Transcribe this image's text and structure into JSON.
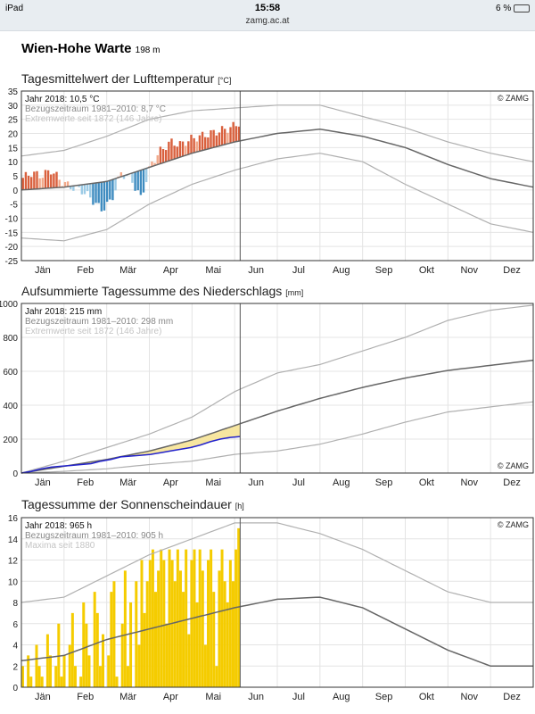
{
  "status_bar": {
    "device": "iPad",
    "time": "15:58",
    "url": "zamg.ac.at",
    "battery": "6 %"
  },
  "station": {
    "name": "Wien-Hohe Warte",
    "elevation": "198 m"
  },
  "colors": {
    "above": "#d9603d",
    "above_light": "#f2a98a",
    "below": "#3f8cc0",
    "below_light": "#9ccbe6",
    "precip_line": "#2222cc",
    "precip_fill": "#f7e6a0",
    "sun_bar": "#f5cc00",
    "normal": "#666666",
    "extreme": "#b0b0b0"
  },
  "chart_data": [
    {
      "type": "line",
      "title": "Tagesmittelwert der Lufttemperatur",
      "unit": "[°C]",
      "ylim": [
        -25,
        35
      ],
      "yticks": [
        35,
        30,
        25,
        20,
        15,
        10,
        5,
        0,
        -5,
        -10,
        -15,
        -20,
        -25
      ],
      "months": [
        "Jän",
        "Feb",
        "Mär",
        "Apr",
        "Mai",
        "Jun",
        "Jul",
        "Aug",
        "Sep",
        "Okt",
        "Nov",
        "Dez"
      ],
      "legend": [
        "Jahr 2018: 10,5 °C",
        "Bezugszeitraum 1981–2010: 8,7 °C",
        "Extremwerte seit 1872 (146 Jahre)"
      ],
      "credit": "© ZAMG",
      "today_day": 156,
      "normal_monthly": [
        0,
        1,
        3,
        8,
        13,
        17,
        20,
        21.5,
        19,
        15,
        9,
        4,
        1
      ],
      "max_monthly": [
        12,
        14,
        19,
        25,
        28,
        29,
        30,
        30,
        26,
        22,
        17,
        13,
        10
      ],
      "min_monthly": [
        -17,
        -18,
        -14,
        -5,
        2,
        7,
        11,
        13,
        10,
        2,
        -5,
        -12,
        -15
      ],
      "year2018_weekly": [
        4,
        6,
        5,
        7,
        3,
        1,
        0,
        -3,
        -7,
        -4,
        6,
        4,
        -3,
        9,
        14,
        17,
        16,
        18,
        19,
        20,
        21,
        22,
        24
      ]
    },
    {
      "type": "line",
      "title": "Aufsummierte Tagessumme des Niederschlags",
      "unit": "[mm]",
      "ylim": [
        0,
        1000
      ],
      "yticks": [
        1000,
        800,
        600,
        400,
        200,
        0
      ],
      "months": [
        "Jän",
        "Feb",
        "Mär",
        "Apr",
        "Mai",
        "Jun",
        "Jul",
        "Aug",
        "Sep",
        "Okt",
        "Nov",
        "Dez"
      ],
      "legend": [
        "Jahr 2018: 215 mm",
        "Bezugszeitraum 1981–2010: 298 mm",
        "Extremwerte seit 1872 (146 Jahre)"
      ],
      "credit": "© ZAMG",
      "today_day": 156,
      "normal_monthly": [
        0,
        40,
        80,
        130,
        195,
        280,
        365,
        440,
        505,
        560,
        605,
        635,
        665
      ],
      "max_monthly": [
        0,
        70,
        150,
        230,
        330,
        480,
        590,
        640,
        720,
        800,
        900,
        960,
        990
      ],
      "min_monthly": [
        0,
        10,
        25,
        50,
        70,
        110,
        130,
        170,
        230,
        300,
        360,
        390,
        420
      ],
      "year2018_weekly": [
        0,
        10,
        25,
        35,
        40,
        45,
        50,
        55,
        70,
        80,
        95,
        100,
        105,
        110,
        120,
        130,
        140,
        150,
        165,
        185,
        200,
        210,
        215
      ]
    },
    {
      "type": "bar",
      "title": "Tagessumme der Sonnenscheindauer",
      "unit": "[h]",
      "ylim": [
        0,
        16
      ],
      "yticks": [
        16,
        14,
        12,
        10,
        8,
        6,
        4,
        2,
        0
      ],
      "months": [
        "Jän",
        "Feb",
        "Mär",
        "Apr",
        "Mai",
        "Jun",
        "Jul",
        "Aug",
        "Sep",
        "Okt",
        "Nov",
        "Dez"
      ],
      "legend": [
        "Jahr 2018: 965 h",
        "Bezugszeitraum 1981–2010: 905 h",
        "Maxima seit 1880"
      ],
      "credit": "© ZAMG",
      "today_day": 156,
      "normal_monthly": [
        2.5,
        3,
        4.5,
        5.5,
        6.5,
        7.5,
        8.3,
        8.5,
        7.5,
        5.5,
        3.5,
        2,
        2
      ],
      "max_monthly": [
        8,
        8.5,
        10.5,
        12.5,
        14,
        15.5,
        15.5,
        14.5,
        13,
        11,
        9,
        8,
        8
      ],
      "year2018_every2days": [
        2,
        0,
        3,
        1,
        0,
        4,
        2,
        1,
        0,
        5,
        3,
        0,
        2,
        6,
        1,
        3,
        0,
        4,
        7,
        2,
        0,
        1,
        8,
        6,
        3,
        0,
        9,
        7,
        2,
        5,
        0,
        3,
        9,
        10,
        1,
        0,
        6,
        11,
        2,
        8,
        0,
        10,
        4,
        12,
        7,
        10,
        12,
        13,
        9,
        11,
        13,
        12,
        6,
        13,
        12,
        10,
        13,
        11,
        9,
        13,
        5,
        12,
        13,
        8,
        13,
        11,
        4,
        12,
        13,
        9,
        2,
        11,
        13,
        10,
        8,
        12,
        10,
        13,
        15
      ]
    }
  ]
}
